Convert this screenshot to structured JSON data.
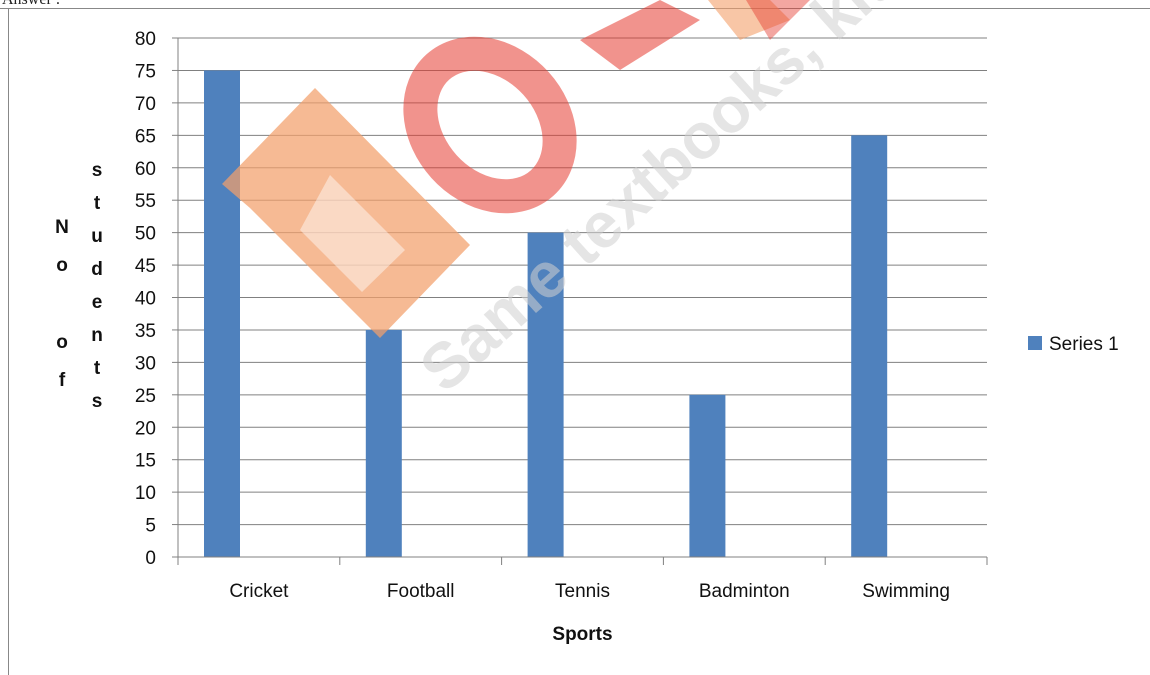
{
  "page": {
    "top_text": "Answer :"
  },
  "watermark": {
    "text": "Same textbooks, kit",
    "colors": {
      "orange": "#f3a06b",
      "red": "#e53a2f"
    }
  },
  "chart_data": {
    "type": "bar",
    "categories": [
      "Cricket",
      "Football",
      "Tennis",
      "Badminton",
      "Swimming"
    ],
    "series": [
      {
        "name": "Series 1",
        "values": [
          75,
          35,
          50,
          25,
          65
        ],
        "color": "#4f81bd"
      }
    ],
    "xlabel": "Sports",
    "ylabel_lines": [
      "N",
      "o",
      "",
      "o",
      "f"
    ],
    "ylabel_vertical": [
      "s",
      "t",
      "u",
      "d",
      "e",
      "n",
      "t",
      "s"
    ],
    "ylim": [
      0,
      80
    ],
    "ystep": 5,
    "grid": true,
    "legend": "right",
    "colors": {
      "grid": "#808080",
      "axis": "#808080",
      "frame": "#888888"
    }
  }
}
